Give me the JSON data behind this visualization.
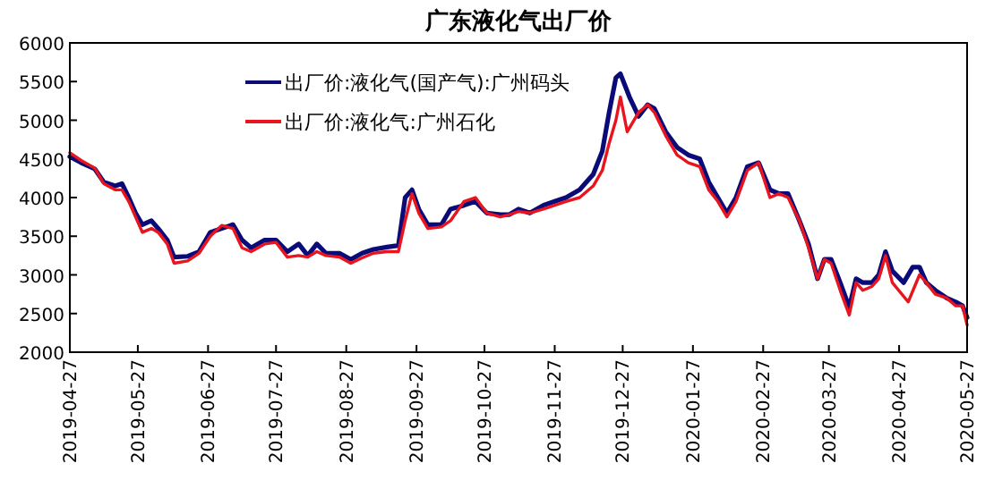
{
  "chart_data": {
    "type": "line",
    "title": "广东液化气出厂价",
    "xlim": [
      "2019-04-27",
      "2020-05-27"
    ],
    "xticks": [
      "2019-04-27",
      "2019-05-27",
      "2019-06-27",
      "2019-07-27",
      "2019-08-27",
      "2019-09-27",
      "2019-10-27",
      "2019-11-27",
      "2019-12-27",
      "2020-01-27",
      "2020-02-27",
      "2020-03-27",
      "2020-04-27",
      "2020-05-27"
    ],
    "ylim": [
      2000,
      6000
    ],
    "yticks": [
      2000,
      2500,
      3000,
      3500,
      4000,
      4500,
      5000,
      5500,
      6000
    ],
    "grid": false,
    "legend": "top left",
    "line_style": "solid",
    "marker": "none",
    "series": [
      {
        "name": "出厂价:液化气(国产气):广州码头",
        "color": "#0a0a78",
        "x": [
          "2019-04-27",
          "2019-05-02",
          "2019-05-08",
          "2019-05-12",
          "2019-05-17",
          "2019-05-20",
          "2019-05-23",
          "2019-05-26",
          "2019-05-29",
          "2019-06-02",
          "2019-06-05",
          "2019-06-09",
          "2019-06-12",
          "2019-06-18",
          "2019-06-23",
          "2019-06-28",
          "2019-07-03",
          "2019-07-08",
          "2019-07-12",
          "2019-07-16",
          "2019-07-22",
          "2019-07-27",
          "2019-08-01",
          "2019-08-06",
          "2019-08-10",
          "2019-08-14",
          "2019-08-18",
          "2019-08-24",
          "2019-08-29",
          "2019-09-03",
          "2019-09-08",
          "2019-09-14",
          "2019-09-19",
          "2019-09-22",
          "2019-09-25",
          "2019-09-28",
          "2019-10-02",
          "2019-10-08",
          "2019-10-12",
          "2019-10-18",
          "2019-10-23",
          "2019-10-28",
          "2019-11-03",
          "2019-11-07",
          "2019-11-11",
          "2019-11-16",
          "2019-11-22",
          "2019-11-27",
          "2019-12-02",
          "2019-12-08",
          "2019-12-14",
          "2019-12-18",
          "2019-12-21",
          "2019-12-24",
          "2019-12-26",
          "2019-12-30",
          "2020-01-03",
          "2020-01-07",
          "2020-01-10",
          "2020-01-15",
          "2020-01-20",
          "2020-01-25",
          "2020-01-30",
          "2020-02-03",
          "2020-02-07",
          "2020-02-11",
          "2020-02-15",
          "2020-02-20",
          "2020-02-25",
          "2020-03-01",
          "2020-03-05",
          "2020-03-09",
          "2020-03-14",
          "2020-03-18",
          "2020-03-22",
          "2020-03-25",
          "2020-03-28",
          "2020-04-01",
          "2020-04-05",
          "2020-04-08",
          "2020-04-11",
          "2020-04-15",
          "2020-04-18",
          "2020-04-21",
          "2020-04-24",
          "2020-04-29",
          "2020-05-03",
          "2020-05-06",
          "2020-05-09",
          "2020-05-13",
          "2020-05-18",
          "2020-05-22",
          "2020-05-25",
          "2020-05-27"
        ],
        "values": [
          4530,
          4450,
          4370,
          4200,
          4150,
          4180,
          4000,
          3800,
          3650,
          3700,
          3600,
          3450,
          3230,
          3240,
          3300,
          3550,
          3600,
          3650,
          3450,
          3350,
          3450,
          3450,
          3300,
          3400,
          3250,
          3400,
          3280,
          3280,
          3200,
          3280,
          3330,
          3360,
          3380,
          4000,
          4100,
          3850,
          3650,
          3650,
          3850,
          3900,
          3950,
          3800,
          3780,
          3780,
          3850,
          3800,
          3900,
          3950,
          4000,
          4100,
          4300,
          4600,
          5100,
          5550,
          5600,
          5300,
          5050,
          5200,
          5150,
          4850,
          4650,
          4550,
          4500,
          4200,
          4000,
          3800,
          4000,
          4400,
          4450,
          4100,
          4050,
          4050,
          3700,
          3400,
          2950,
          3200,
          3200,
          2900,
          2580,
          2950,
          2900,
          2900,
          3000,
          3300,
          3050,
          2900,
          3100,
          3100,
          2900,
          2800,
          2700,
          2650,
          2600,
          2450
        ]
      },
      {
        "name": "出厂价:液化气:广州石化",
        "color": "#e8141e",
        "x": [
          "2019-04-27",
          "2019-05-02",
          "2019-05-08",
          "2019-05-12",
          "2019-05-17",
          "2019-05-20",
          "2019-05-23",
          "2019-05-26",
          "2019-05-29",
          "2019-06-02",
          "2019-06-05",
          "2019-06-09",
          "2019-06-12",
          "2019-06-18",
          "2019-06-23",
          "2019-06-28",
          "2019-07-03",
          "2019-07-08",
          "2019-07-12",
          "2019-07-16",
          "2019-07-22",
          "2019-07-27",
          "2019-08-01",
          "2019-08-06",
          "2019-08-10",
          "2019-08-14",
          "2019-08-18",
          "2019-08-24",
          "2019-08-29",
          "2019-09-03",
          "2019-09-08",
          "2019-09-14",
          "2019-09-19",
          "2019-09-22",
          "2019-09-25",
          "2019-09-28",
          "2019-10-02",
          "2019-10-08",
          "2019-10-12",
          "2019-10-18",
          "2019-10-23",
          "2019-10-28",
          "2019-11-03",
          "2019-11-07",
          "2019-11-11",
          "2019-11-16",
          "2019-11-22",
          "2019-11-27",
          "2019-12-02",
          "2019-12-08",
          "2019-12-14",
          "2019-12-18",
          "2019-12-21",
          "2019-12-24",
          "2019-12-26",
          "2019-12-29",
          "2020-01-03",
          "2020-01-07",
          "2020-01-10",
          "2020-01-15",
          "2020-01-20",
          "2020-01-25",
          "2020-01-30",
          "2020-02-03",
          "2020-02-07",
          "2020-02-11",
          "2020-02-15",
          "2020-02-20",
          "2020-02-25",
          "2020-03-01",
          "2020-03-05",
          "2020-03-09",
          "2020-03-14",
          "2020-03-18",
          "2020-03-22",
          "2020-03-25",
          "2020-03-28",
          "2020-04-01",
          "2020-04-05",
          "2020-04-08",
          "2020-04-11",
          "2020-04-15",
          "2020-04-18",
          "2020-04-21",
          "2020-04-24",
          "2020-05-01",
          "2020-05-06",
          "2020-05-09",
          "2020-05-13",
          "2020-05-18",
          "2020-05-22",
          "2020-05-25",
          "2020-05-27"
        ],
        "values": [
          4580,
          4480,
          4380,
          4180,
          4100,
          4100,
          3950,
          3750,
          3550,
          3600,
          3550,
          3400,
          3150,
          3180,
          3280,
          3500,
          3640,
          3600,
          3350,
          3300,
          3400,
          3420,
          3230,
          3250,
          3230,
          3300,
          3250,
          3230,
          3150,
          3220,
          3280,
          3300,
          3300,
          3700,
          4050,
          3800,
          3600,
          3620,
          3700,
          3950,
          4000,
          3800,
          3750,
          3780,
          3820,
          3800,
          3850,
          3900,
          3950,
          4000,
          4150,
          4350,
          4700,
          5000,
          5300,
          4850,
          5100,
          5200,
          5100,
          4800,
          4550,
          4450,
          4400,
          4100,
          3950,
          3750,
          3950,
          4350,
          4450,
          4000,
          4050,
          4000,
          3700,
          3350,
          2950,
          3200,
          3150,
          2800,
          2480,
          2900,
          2800,
          2850,
          2950,
          3250,
          2900,
          2650,
          3000,
          2900,
          2750,
          2700,
          2600,
          2600,
          2350
        ]
      }
    ]
  }
}
